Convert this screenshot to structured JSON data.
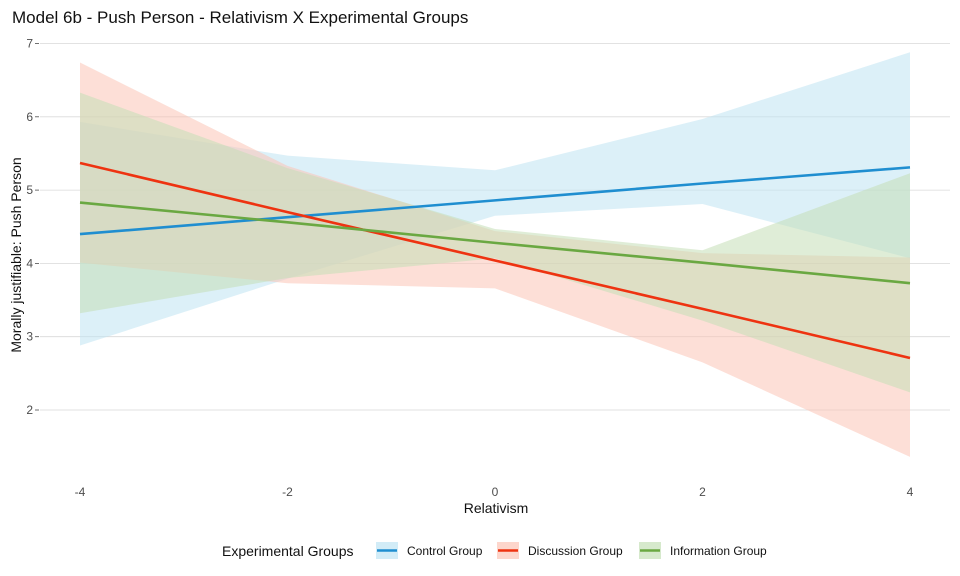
{
  "chart_data": {
    "type": "line",
    "title": "Model 6b - Push Person - Relativism X Experimental Groups",
    "xlabel": "Relativism",
    "ylabel": "Morally justifiable: Push Person",
    "xlim": [
      -4,
      4
    ],
    "ylim": [
      1.4,
      6.9
    ],
    "x_ticks": [
      "-4",
      "-2",
      "0",
      "2",
      "4"
    ],
    "y_ticks": [
      "2",
      "3",
      "4",
      "5",
      "6",
      "7"
    ],
    "grid": true,
    "legend": {
      "title": "Experimental Groups",
      "position": "bottom"
    },
    "series": [
      {
        "name": "Control Group",
        "color": "#1f8ed0",
        "band_color": "#bfe4f3",
        "x": [
          -4,
          -2,
          0,
          2,
          4
        ],
        "y": [
          4.4,
          4.63,
          4.86,
          5.09,
          5.31
        ],
        "lower": [
          2.88,
          3.79,
          4.65,
          4.81,
          4.07
        ],
        "upper": [
          5.93,
          5.47,
          5.27,
          5.97,
          6.88
        ]
      },
      {
        "name": "Discussion Group",
        "color": "#ee3311",
        "band_color": "#fcc4b6",
        "x": [
          -4,
          -2,
          0,
          2,
          4
        ],
        "y": [
          5.37,
          4.7,
          4.04,
          3.38,
          2.71
        ],
        "lower": [
          4.01,
          3.73,
          3.66,
          2.65,
          1.36
        ],
        "upper": [
          6.74,
          5.33,
          4.44,
          4.14,
          4.08
        ]
      },
      {
        "name": "Information Group",
        "color": "#6aa842",
        "band_color": "#c4dfb6",
        "x": [
          -4,
          -2,
          0,
          2,
          4
        ],
        "y": [
          4.83,
          4.56,
          4.28,
          4.01,
          3.73
        ],
        "lower": [
          3.32,
          3.8,
          4.07,
          3.22,
          2.24
        ],
        "upper": [
          6.33,
          5.3,
          4.47,
          4.18,
          5.23
        ]
      }
    ]
  }
}
